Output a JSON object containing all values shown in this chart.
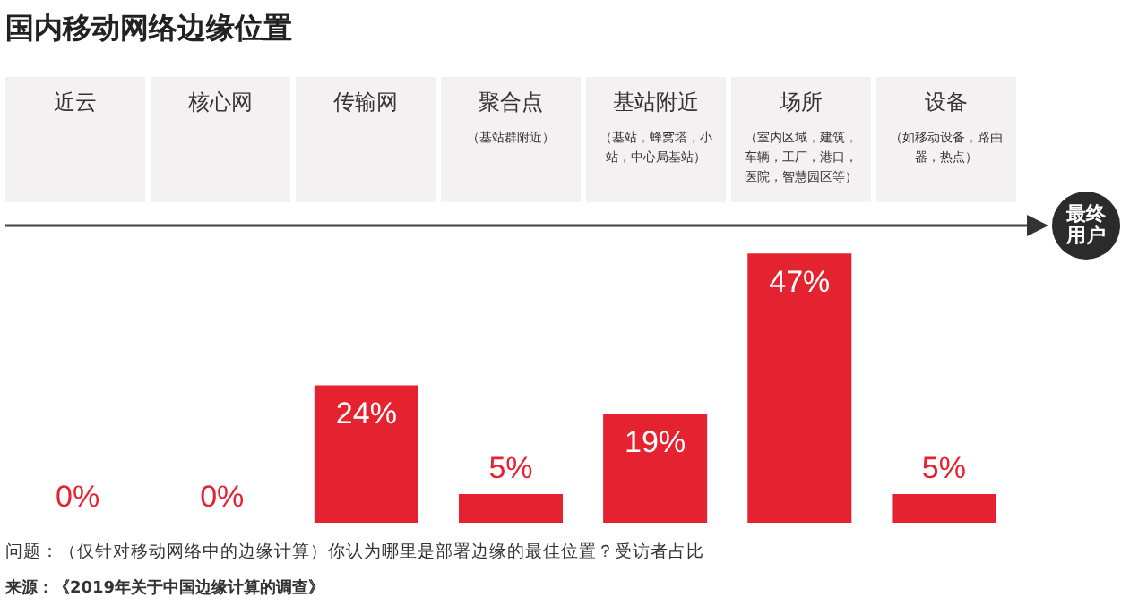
{
  "chart_data": {
    "type": "bar",
    "title": "国内移动网络边缘位置",
    "categories": [
      "近云",
      "核心网",
      "传输网",
      "聚合点（基站群附近）",
      "基站附近（基站，蜂窝塔，小站，中心局基站）",
      "场所（室内区域，建筑，车辆，工厂，港口，医院，智慧园区等）",
      "设备（如移动设备，路由器，热点）"
    ],
    "values": [
      0,
      0,
      24,
      5,
      19,
      47,
      5
    ],
    "value_labels": [
      "0%",
      "0%",
      "24%",
      "5%",
      "19%",
      "47%",
      "5%"
    ],
    "color": "#e52330",
    "tick_labels": false,
    "legend": false,
    "annotations": [
      "最终用户",
      "问题：（仅针对移动网络中的边缘计算）你认为哪里是部署边缘的最佳位置？受访者占比",
      "来源：《2019年关于中国边缘计算的调查》"
    ]
  }
}
